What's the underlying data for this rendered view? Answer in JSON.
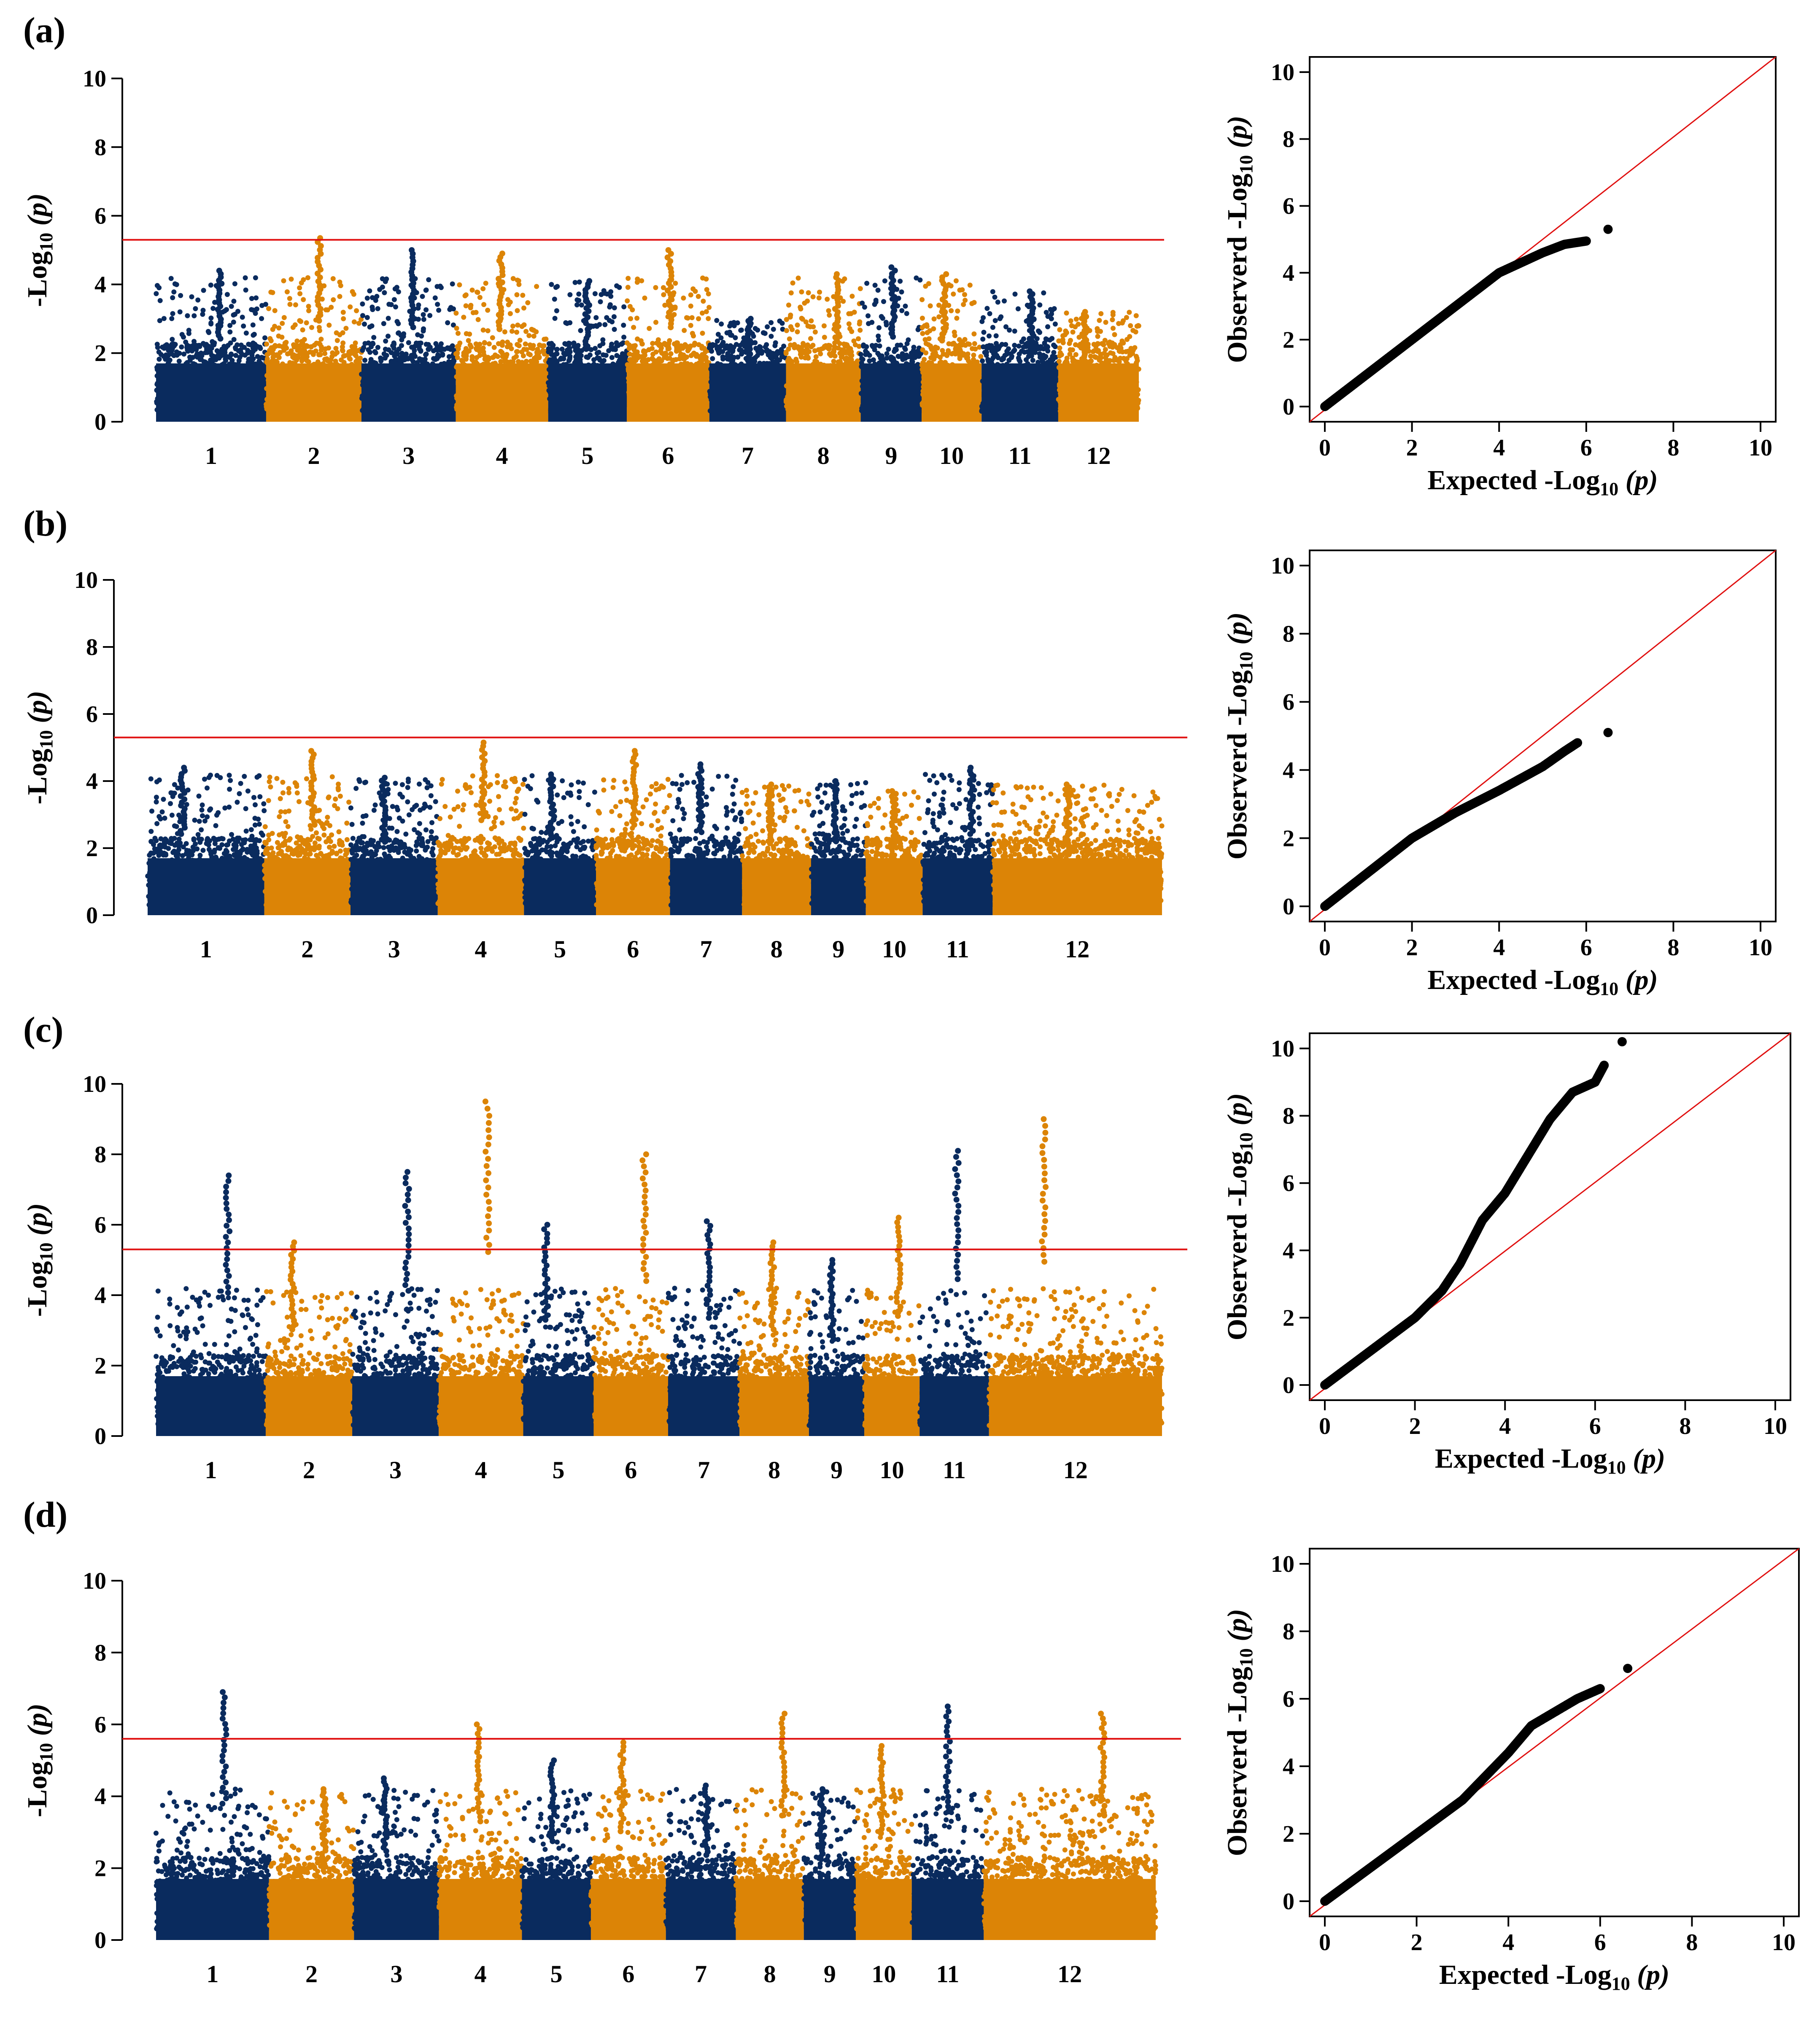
{
  "colors": {
    "navy": "#0a2b5e",
    "orange": "#dc8406",
    "threshold": "#e01010",
    "qq_points": "#000000",
    "qq_line": "#e01010"
  },
  "chart_data": [
    {
      "type": "scatter",
      "subtype": "manhattan",
      "panel": "(a)",
      "ylabel_main": "-Log",
      "ylabel_sub": "10",
      "ylabel_tail": " (p)",
      "ylim": [
        0,
        10
      ],
      "yticks": [
        "0",
        "2",
        "4",
        "6",
        "8",
        "10"
      ],
      "threshold": 5.3,
      "chromosomes": [
        "1",
        "2",
        "3",
        "4",
        "5",
        "6",
        "7",
        "8",
        "9",
        "10",
        "11",
        "12"
      ],
      "chrom_spans": [
        [
          0.0,
          0.112
        ],
        [
          0.112,
          0.209
        ],
        [
          0.209,
          0.305
        ],
        [
          0.305,
          0.399
        ],
        [
          0.399,
          0.479
        ],
        [
          0.479,
          0.563
        ],
        [
          0.563,
          0.641
        ],
        [
          0.641,
          0.717
        ],
        [
          0.717,
          0.779
        ],
        [
          0.779,
          0.84
        ],
        [
          0.84,
          0.918
        ],
        [
          0.918,
          1.0
        ]
      ],
      "chrom_max": [
        4.4,
        5.35,
        5.0,
        4.9,
        4.1,
        5.0,
        3.0,
        4.3,
        4.5,
        4.3,
        3.8,
        3.2
      ]
    },
    {
      "type": "scatter",
      "subtype": "qq",
      "panel": "(a)",
      "xlabel_main": "Expected -Log",
      "ylabel_main": "Observerd -Log",
      "label_sub": "10",
      "label_tail": " (p)",
      "xlim": [
        0,
        10
      ],
      "ylim": [
        0,
        10
      ],
      "ticks": [
        "0",
        "2",
        "4",
        "6",
        "8",
        "10"
      ],
      "curve": [
        [
          0,
          0
        ],
        [
          2,
          2
        ],
        [
          4,
          4.0
        ],
        [
          5,
          4.6
        ],
        [
          5.5,
          4.85
        ],
        [
          6.0,
          4.95
        ],
        [
          6.5,
          5.3
        ]
      ]
    },
    {
      "type": "scatter",
      "subtype": "manhattan",
      "panel": "(b)",
      "ylabel_main": "-Log",
      "ylabel_sub": "10",
      "ylabel_tail": " (p)",
      "ylim": [
        0,
        10
      ],
      "yticks": [
        "0",
        "2",
        "4",
        "6",
        "8",
        "10"
      ],
      "threshold": 5.3,
      "chromosomes": [
        "1",
        "2",
        "3",
        "4",
        "5",
        "6",
        "7",
        "8",
        "9",
        "10",
        "11",
        "12"
      ],
      "chrom_spans": [
        [
          0.0,
          0.115
        ],
        [
          0.115,
          0.2
        ],
        [
          0.2,
          0.286
        ],
        [
          0.286,
          0.371
        ],
        [
          0.371,
          0.442
        ],
        [
          0.442,
          0.515
        ],
        [
          0.515,
          0.586
        ],
        [
          0.586,
          0.654
        ],
        [
          0.654,
          0.708
        ],
        [
          0.708,
          0.764
        ],
        [
          0.764,
          0.833
        ],
        [
          0.833,
          1.0
        ]
      ],
      "chrom_max": [
        4.4,
        4.9,
        4.1,
        5.15,
        4.2,
        4.9,
        4.5,
        3.9,
        4.0,
        3.7,
        4.4,
        3.9
      ]
    },
    {
      "type": "scatter",
      "subtype": "qq",
      "panel": "(b)",
      "xlabel_main": "Expected -Log",
      "ylabel_main": "Observerd -Log",
      "label_sub": "10",
      "label_tail": " (p)",
      "xlim": [
        0,
        10
      ],
      "ylim": [
        0,
        10
      ],
      "ticks": [
        "0",
        "2",
        "4",
        "6",
        "8",
        "10"
      ],
      "curve": [
        [
          0,
          0
        ],
        [
          2,
          2
        ],
        [
          3,
          2.75
        ],
        [
          4,
          3.4
        ],
        [
          5,
          4.1
        ],
        [
          5.5,
          4.55
        ],
        [
          5.8,
          4.8
        ],
        [
          6.5,
          5.1
        ]
      ]
    },
    {
      "type": "scatter",
      "subtype": "manhattan",
      "panel": "(c)",
      "ylabel_main": "-Log",
      "ylabel_sub": "10",
      "ylabel_tail": " (p)",
      "ylim": [
        0,
        10
      ],
      "yticks": [
        "0",
        "2",
        "4",
        "6",
        "8",
        "10"
      ],
      "threshold": 5.3,
      "chromosomes": [
        "1",
        "2",
        "3",
        "4",
        "5",
        "6",
        "7",
        "8",
        "9",
        "10",
        "11",
        "12"
      ],
      "chrom_spans": [
        [
          0.0,
          0.109
        ],
        [
          0.109,
          0.195
        ],
        [
          0.195,
          0.281
        ],
        [
          0.281,
          0.365
        ],
        [
          0.365,
          0.435
        ],
        [
          0.435,
          0.509
        ],
        [
          0.509,
          0.58
        ],
        [
          0.58,
          0.649
        ],
        [
          0.649,
          0.704
        ],
        [
          0.704,
          0.759
        ],
        [
          0.759,
          0.828
        ],
        [
          0.828,
          1.0
        ]
      ],
      "chrom_max": [
        7.4,
        5.5,
        7.5,
        9.5,
        6.0,
        8.0,
        6.1,
        5.5,
        5.0,
        6.2,
        8.1,
        9.0
      ]
    },
    {
      "type": "scatter",
      "subtype": "qq",
      "panel": "(c)",
      "xlabel_main": "Expected -Log",
      "ylabel_main": "Observerd -Log",
      "label_sub": "10",
      "label_tail": " (p)",
      "xlim": [
        0,
        10
      ],
      "ylim": [
        0,
        10
      ],
      "ticks": [
        "0",
        "2",
        "4",
        "6",
        "8",
        "10"
      ],
      "curve": [
        [
          0,
          0
        ],
        [
          2,
          2
        ],
        [
          2.6,
          2.8
        ],
        [
          3,
          3.6
        ],
        [
          3.5,
          4.9
        ],
        [
          4,
          5.7
        ],
        [
          4.5,
          6.8
        ],
        [
          5,
          7.9
        ],
        [
          5.5,
          8.7
        ],
        [
          6.0,
          9.0
        ],
        [
          6.2,
          9.5
        ],
        [
          6.6,
          10.2
        ]
      ]
    },
    {
      "type": "scatter",
      "subtype": "manhattan",
      "panel": "(d)",
      "ylabel_main": "-Log",
      "ylabel_sub": "10",
      "ylabel_tail": " (p)",
      "ylim": [
        0,
        10
      ],
      "yticks": [
        "0",
        "2",
        "4",
        "6",
        "8",
        "10"
      ],
      "threshold": 5.6,
      "chromosomes": [
        "1",
        "2",
        "3",
        "4",
        "5",
        "6",
        "7",
        "8",
        "9",
        "10",
        "11",
        "12"
      ],
      "chrom_spans": [
        [
          0.0,
          0.113
        ],
        [
          0.113,
          0.198
        ],
        [
          0.198,
          0.283
        ],
        [
          0.283,
          0.366
        ],
        [
          0.366,
          0.435
        ],
        [
          0.435,
          0.51
        ],
        [
          0.51,
          0.58
        ],
        [
          0.58,
          0.648
        ],
        [
          0.648,
          0.7
        ],
        [
          0.7,
          0.756
        ],
        [
          0.756,
          0.828
        ],
        [
          0.828,
          1.0
        ]
      ],
      "chrom_max": [
        6.9,
        4.2,
        4.5,
        6.0,
        5.0,
        5.5,
        4.3,
        6.3,
        4.2,
        5.4,
        6.5,
        6.3
      ]
    },
    {
      "type": "scatter",
      "subtype": "qq",
      "panel": "(d)",
      "xlabel_main": "Expected -Log",
      "ylabel_main": "Observerd -Log",
      "label_sub": "10",
      "label_tail": " (p)",
      "xlim": [
        0,
        10
      ],
      "ylim": [
        0,
        10
      ],
      "ticks": [
        "0",
        "2",
        "4",
        "6",
        "8",
        "10"
      ],
      "curve": [
        [
          0,
          0
        ],
        [
          2,
          2
        ],
        [
          3,
          3.0
        ],
        [
          4,
          4.4
        ],
        [
          4.5,
          5.2
        ],
        [
          5,
          5.6
        ],
        [
          5.5,
          6.0
        ],
        [
          6.0,
          6.3
        ],
        [
          6.6,
          6.9
        ]
      ]
    }
  ]
}
